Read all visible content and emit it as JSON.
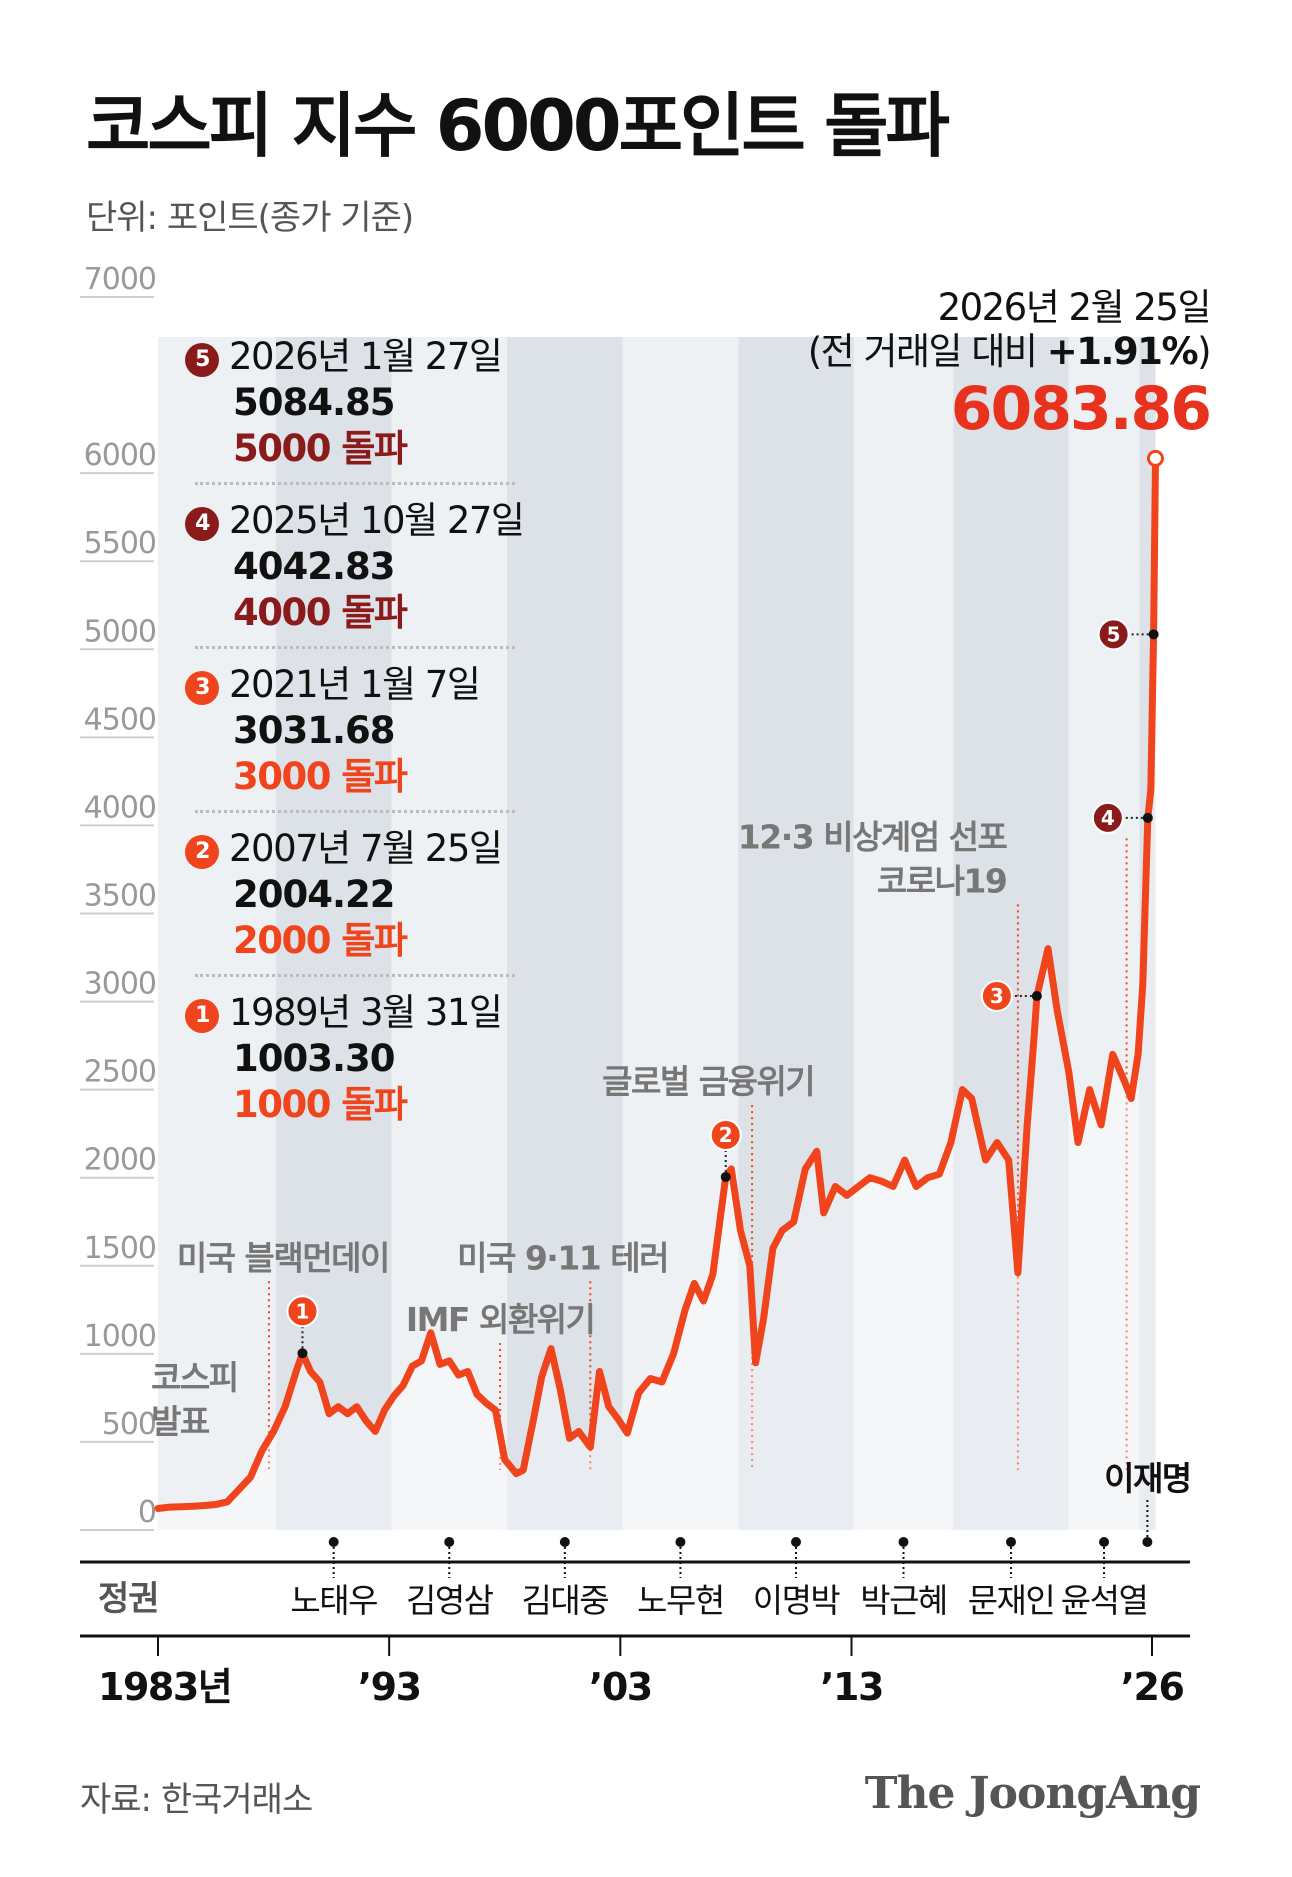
{
  "header": {
    "title": "코스피 지수 6000포인트 돌파",
    "unit_note": "단위: 포인트(종가 기준)"
  },
  "colors": {
    "line": "#f0441c",
    "badge_dark": "#8b1a1a",
    "badge_orange": "#f0441c",
    "latest_value": "#e8321e",
    "era_band_dark": "#dde2e8",
    "era_band_light": "#eef1f4",
    "annotation_text": "#777777"
  },
  "milestones": [
    {
      "num": "5",
      "date": "2026년 1월 27일",
      "value": "5084.85",
      "label": "5000 돌파",
      "color": "#8b1a1a"
    },
    {
      "num": "4",
      "date": "2025년 10월 27일",
      "value": "4042.83",
      "label": "4000 돌파",
      "color": "#8b1a1a"
    },
    {
      "num": "3",
      "date": "2021년 1월 7일",
      "value": "3031.68",
      "label": "3000 돌파",
      "color": "#f0441c"
    },
    {
      "num": "2",
      "date": "2007년 7월 25일",
      "value": "2004.22",
      "label": "2000 돌파",
      "color": "#f0441c"
    },
    {
      "num": "1",
      "date": "1989년 3월 31일",
      "value": "1003.30",
      "label": "1000 돌파",
      "color": "#f0441c"
    }
  ],
  "latest": {
    "date": "2026년 2월 25일",
    "change_prefix": "(전 거래일 대비 ",
    "change_value": "+1.91%",
    "change_suffix": ")",
    "value": "6083.86"
  },
  "footer": {
    "source": "자료: 한국거래소",
    "brand": "The JoongAng"
  },
  "chart_data": {
    "type": "line",
    "x_unit": "year",
    "xlim": [
      1983,
      2026
    ],
    "ylim": [
      0,
      7000
    ],
    "y_ticks": [
      0,
      500,
      1000,
      1500,
      2000,
      2500,
      3000,
      3500,
      4000,
      4500,
      5000,
      5500,
      6000,
      7000
    ],
    "x_ticks": [
      {
        "x": 1983,
        "label": "1983년"
      },
      {
        "x": 1993,
        "label": "’93"
      },
      {
        "x": 2003,
        "label": "’03"
      },
      {
        "x": 2013,
        "label": "’13"
      },
      {
        "x": 2026,
        "label": "’26"
      }
    ],
    "regime_axis_label": "정권",
    "series": [
      {
        "points": [
          [
            1983.0,
            122
          ],
          [
            1983.5,
            130
          ],
          [
            1984.0,
            132
          ],
          [
            1984.5,
            135
          ],
          [
            1985.0,
            139
          ],
          [
            1985.5,
            145
          ],
          [
            1986.0,
            160
          ],
          [
            1986.5,
            230
          ],
          [
            1987.0,
            300
          ],
          [
            1987.5,
            450
          ],
          [
            1988.0,
            560
          ],
          [
            1988.5,
            700
          ],
          [
            1989.0,
            910
          ],
          [
            1989.25,
            1003
          ],
          [
            1989.6,
            900
          ],
          [
            1990.0,
            840
          ],
          [
            1990.4,
            660
          ],
          [
            1990.8,
            700
          ],
          [
            1991.2,
            660
          ],
          [
            1991.6,
            700
          ],
          [
            1992.0,
            620
          ],
          [
            1992.4,
            560
          ],
          [
            1992.8,
            680
          ],
          [
            1993.2,
            760
          ],
          [
            1993.6,
            820
          ],
          [
            1994.0,
            930
          ],
          [
            1994.4,
            960
          ],
          [
            1994.8,
            1120
          ],
          [
            1995.2,
            940
          ],
          [
            1995.6,
            960
          ],
          [
            1996.0,
            880
          ],
          [
            1996.4,
            900
          ],
          [
            1996.8,
            770
          ],
          [
            1997.2,
            720
          ],
          [
            1997.6,
            680
          ],
          [
            1998.0,
            400
          ],
          [
            1998.5,
            320
          ],
          [
            1998.8,
            340
          ],
          [
            1999.2,
            600
          ],
          [
            1999.6,
            870
          ],
          [
            2000.0,
            1030
          ],
          [
            2000.4,
            800
          ],
          [
            2000.8,
            520
          ],
          [
            2001.2,
            560
          ],
          [
            2001.7,
            470
          ],
          [
            2002.1,
            900
          ],
          [
            2002.5,
            700
          ],
          [
            2002.9,
            630
          ],
          [
            2003.3,
            550
          ],
          [
            2003.8,
            780
          ],
          [
            2004.3,
            860
          ],
          [
            2004.8,
            840
          ],
          [
            2005.3,
            1000
          ],
          [
            2005.8,
            1250
          ],
          [
            2006.2,
            1400
          ],
          [
            2006.6,
            1300
          ],
          [
            2007.0,
            1450
          ],
          [
            2007.56,
            2004
          ],
          [
            2007.8,
            2050
          ],
          [
            2008.2,
            1700
          ],
          [
            2008.6,
            1500
          ],
          [
            2008.85,
            950
          ],
          [
            2009.2,
            1200
          ],
          [
            2009.6,
            1600
          ],
          [
            2010.0,
            1700
          ],
          [
            2010.5,
            1750
          ],
          [
            2011.0,
            2050
          ],
          [
            2011.5,
            2150
          ],
          [
            2011.8,
            1800
          ],
          [
            2012.3,
            1950
          ],
          [
            2012.8,
            1900
          ],
          [
            2013.3,
            1950
          ],
          [
            2013.8,
            2000
          ],
          [
            2014.3,
            1980
          ],
          [
            2014.8,
            1950
          ],
          [
            2015.3,
            2100
          ],
          [
            2015.8,
            1950
          ],
          [
            2016.3,
            2000
          ],
          [
            2016.8,
            2020
          ],
          [
            2017.3,
            2200
          ],
          [
            2017.8,
            2500
          ],
          [
            2018.2,
            2450
          ],
          [
            2018.8,
            2100
          ],
          [
            2019.3,
            2200
          ],
          [
            2019.8,
            2100
          ],
          [
            2020.2,
            1460
          ],
          [
            2020.6,
            2300
          ],
          [
            2020.9,
            2800
          ],
          [
            2021.02,
            3031
          ],
          [
            2021.5,
            3300
          ],
          [
            2021.9,
            2950
          ],
          [
            2022.4,
            2600
          ],
          [
            2022.8,
            2200
          ],
          [
            2023.3,
            2500
          ],
          [
            2023.8,
            2300
          ],
          [
            2024.3,
            2700
          ],
          [
            2024.8,
            2550
          ],
          [
            2025.1,
            2450
          ],
          [
            2025.4,
            2700
          ],
          [
            2025.6,
            3100
          ],
          [
            2025.82,
            4042
          ],
          [
            2025.95,
            4200
          ],
          [
            2026.07,
            5084
          ],
          [
            2026.15,
            6083.86
          ]
        ]
      }
    ],
    "regimes": [
      {
        "name": "",
        "start": 1983.0,
        "end": 1988.1
      },
      {
        "name": "노태우",
        "start": 1988.1,
        "end": 1993.1
      },
      {
        "name": "김영삼",
        "start": 1993.1,
        "end": 1998.1
      },
      {
        "name": "김대중",
        "start": 1998.1,
        "end": 2003.1
      },
      {
        "name": "노무현",
        "start": 2003.1,
        "end": 2008.1
      },
      {
        "name": "이명박",
        "start": 2008.1,
        "end": 2013.1
      },
      {
        "name": "박근혜",
        "start": 2013.1,
        "end": 2017.4
      },
      {
        "name": "문재인",
        "start": 2017.4,
        "end": 2022.4
      },
      {
        "name": "윤석열",
        "start": 2022.4,
        "end": 2025.45
      },
      {
        "name": "이재명",
        "start": 2025.45,
        "end": 2026.15
      }
    ],
    "events": [
      {
        "lines": [
          "코스피",
          "발표"
        ],
        "x": 1983.0,
        "anchor": "start",
        "leader": false,
        "text_x": 1982.7,
        "text_y": 800
      },
      {
        "lines": [
          "미국 블랙먼데이"
        ],
        "x": 1987.8,
        "anchor": "middle",
        "leader": true,
        "text_x": 1988.4,
        "text_y": 1480
      },
      {
        "lines": [
          "IMF 외환위기"
        ],
        "x": 1997.8,
        "anchor": "middle",
        "leader": true,
        "text_x": 1997.8,
        "text_y": 1130
      },
      {
        "lines": [
          "미국 9·11 테러"
        ],
        "x": 2001.7,
        "anchor": "middle",
        "leader": true,
        "text_x": 2000.5,
        "text_y": 1480
      },
      {
        "lines": [
          "글로벌 금융위기"
        ],
        "x": 2008.7,
        "anchor": "middle",
        "leader": true,
        "text_x": 2006.8,
        "text_y": 2480
      },
      {
        "lines": [
          "12·3 비상계엄 선포",
          "코로나19"
        ],
        "x": 2020.2,
        "anchor": "end",
        "leader": true,
        "text_x": 2019.7,
        "text_y": 3870
      },
      {
        "lines": [],
        "x": 2024.9,
        "anchor": "end",
        "leader": true,
        "text_x": 2024.9,
        "text_y": 3870
      }
    ],
    "milestone_points": [
      {
        "num": "1",
        "x": 1989.25,
        "y": 1003.3,
        "badge_side": "above",
        "color": "#f0441c"
      },
      {
        "num": "2",
        "x": 2007.56,
        "y": 2004.22,
        "badge_side": "above",
        "color": "#f0441c"
      },
      {
        "num": "3",
        "x": 2021.02,
        "y": 3031.68,
        "badge_side": "left",
        "color": "#f0441c"
      },
      {
        "num": "4",
        "x": 2025.82,
        "y": 4042.83,
        "badge_side": "left",
        "color": "#8b1a1a"
      },
      {
        "num": "5",
        "x": 2026.07,
        "y": 5084.85,
        "badge_side": "left",
        "color": "#8b1a1a"
      }
    ]
  }
}
